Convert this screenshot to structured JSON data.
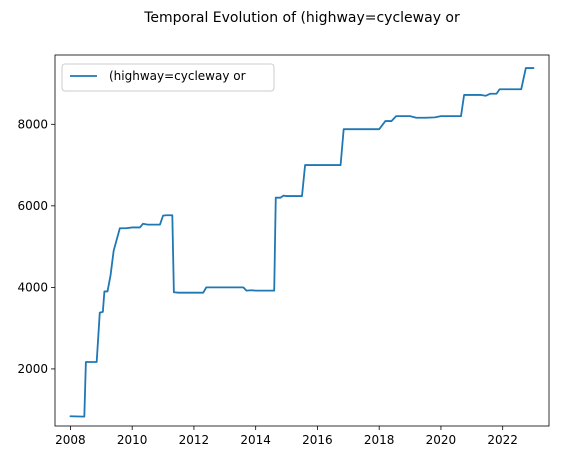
{
  "chart_data": {
    "type": "line",
    "title": "Temporal Evolution of (highway=cycleway or",
    "xlabel": "",
    "ylabel": "",
    "xlim": [
      2007.5,
      2023.5
    ],
    "ylim": [
      600,
      9700
    ],
    "x_ticks": [
      2008,
      2010,
      2012,
      2014,
      2016,
      2018,
      2020,
      2022
    ],
    "y_ticks": [
      2000,
      4000,
      6000,
      8000
    ],
    "grid": false,
    "legend_position": "top-left",
    "colors": {
      "series": "#1f77b4",
      "axis": "#000000",
      "background": "#ffffff",
      "legend_border": "#cccccc"
    },
    "series": [
      {
        "name": "(highway=cycleway or",
        "x": [
          2008.0,
          2008.45,
          2008.5,
          2008.85,
          2008.95,
          2009.05,
          2009.1,
          2009.2,
          2009.3,
          2009.4,
          2009.6,
          2009.8,
          2010.0,
          2010.25,
          2010.35,
          2010.5,
          2010.9,
          2011.0,
          2011.1,
          2011.3,
          2011.35,
          2011.5,
          2012.0,
          2012.3,
          2012.4,
          2013.0,
          2013.5,
          2013.6,
          2013.7,
          2013.85,
          2014.0,
          2014.5,
          2014.6,
          2014.65,
          2014.8,
          2014.9,
          2015.0,
          2015.5,
          2015.6,
          2015.7,
          2016.0,
          2016.5,
          2016.75,
          2016.85,
          2017.0,
          2017.5,
          2018.0,
          2018.2,
          2018.4,
          2018.55,
          2018.7,
          2019.0,
          2019.2,
          2019.5,
          2019.8,
          2020.0,
          2020.3,
          2020.65,
          2020.75,
          2021.0,
          2021.3,
          2021.45,
          2021.6,
          2021.8,
          2021.9,
          2022.1,
          2022.6,
          2022.75,
          2023.0
        ],
        "values": [
          840,
          830,
          2170,
          2170,
          3380,
          3400,
          3900,
          3900,
          4300,
          4900,
          5450,
          5450,
          5470,
          5470,
          5560,
          5540,
          5540,
          5760,
          5770,
          5770,
          3880,
          3870,
          3870,
          3870,
          4000,
          4000,
          4000,
          4000,
          3920,
          3930,
          3920,
          3920,
          3920,
          6200,
          6200,
          6250,
          6240,
          6240,
          7000,
          7000,
          7000,
          7000,
          7000,
          7880,
          7880,
          7880,
          7880,
          8080,
          8080,
          8200,
          8200,
          8200,
          8160,
          8160,
          8170,
          8200,
          8200,
          8200,
          8720,
          8720,
          8720,
          8700,
          8750,
          8750,
          8860,
          8860,
          8860,
          9380,
          9380
        ]
      }
    ]
  }
}
